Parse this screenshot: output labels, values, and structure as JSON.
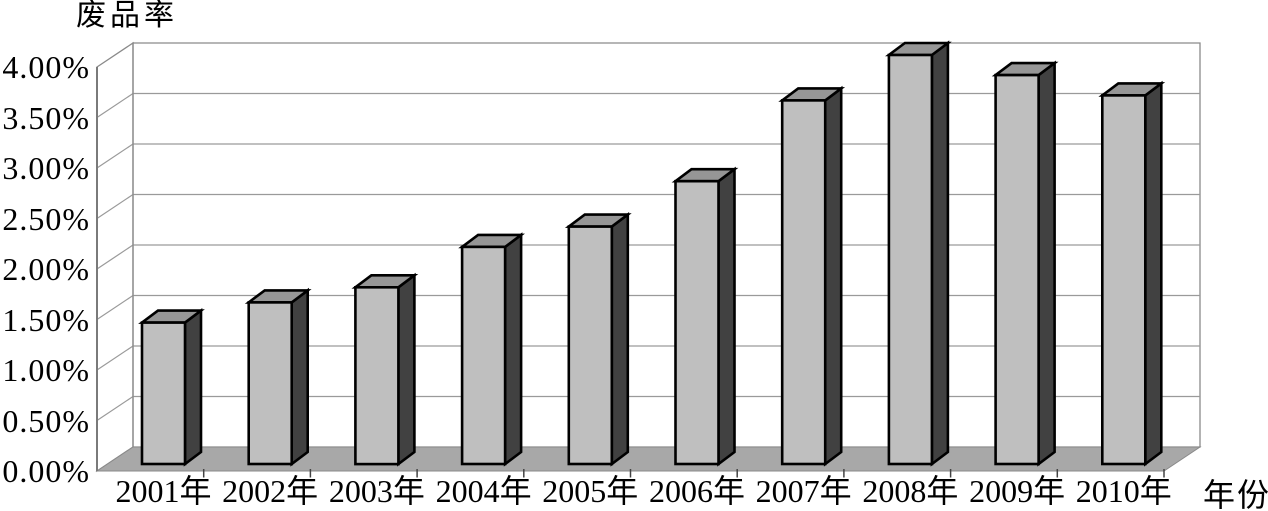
{
  "chart_data": {
    "type": "bar",
    "style": "3d-column-grayscale",
    "title": "废品率",
    "xlabel": "年份",
    "ylabel": "废品率",
    "categories": [
      "2001年",
      "2002年",
      "2003年",
      "2004年",
      "2005年",
      "2006年",
      "2007年",
      "2008年",
      "2009年",
      "2010年"
    ],
    "series": [
      {
        "name": "废品率",
        "values": [
          1.4,
          1.6,
          1.75,
          2.15,
          2.35,
          2.8,
          3.6,
          4.05,
          3.85,
          3.65
        ]
      }
    ],
    "value_unit": "%",
    "ylim": [
      0,
      4
    ],
    "y_tick_step": 0.5,
    "y_tick_labels": [
      "4.00%",
      "3.50%",
      "3.00%",
      "2.50%",
      "2.00%",
      "1.50%",
      "1.00%",
      "0.50%",
      "0.00%"
    ],
    "grid": true,
    "legend": "none",
    "colors": {
      "bar_front": "#bfbfbf",
      "bar_top": "#969696",
      "bar_side": "#414141",
      "bar_outline": "#000000",
      "floor": "#a8a8a8",
      "wall_line": "#8a8a8a",
      "gridline": "#9a9a9a",
      "axis_line": "#7a7a7a",
      "tick": "#444444",
      "background": "#ffffff",
      "text": "#000000"
    }
  }
}
